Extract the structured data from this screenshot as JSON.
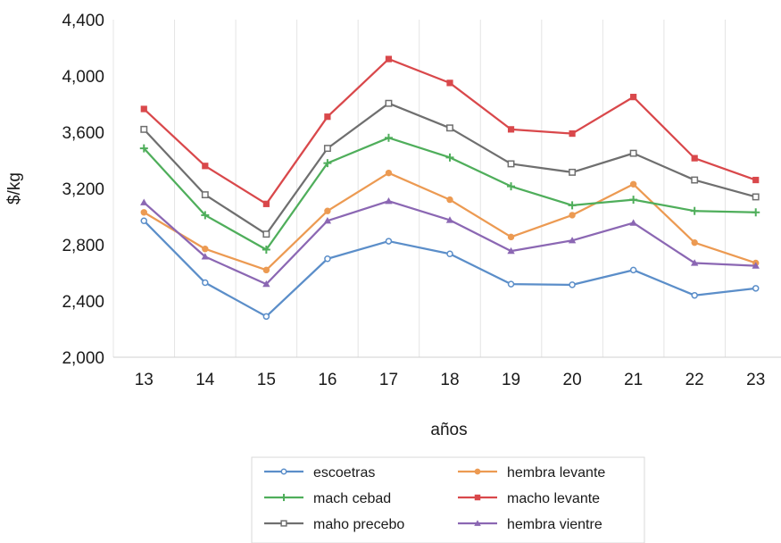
{
  "chart_data": {
    "type": "line",
    "title": "",
    "xlabel": "años",
    "ylabel": "$/kg",
    "categories": [
      "13",
      "14",
      "15",
      "16",
      "17",
      "18",
      "19",
      "20",
      "21",
      "22",
      "23"
    ],
    "ylim": [
      2000,
      4400
    ],
    "yticks": [
      2000,
      2400,
      2800,
      3200,
      3600,
      4000,
      4400
    ],
    "ytick_labels": [
      "2,000",
      "2,400",
      "2,800",
      "3,200",
      "3,600",
      "4,000",
      "4,400"
    ],
    "grid": "vertical",
    "legend_position": "bottom",
    "series": [
      {
        "name": "escoetras",
        "color": "#5b8ec9",
        "marker": "circle-open",
        "values": [
          2970,
          2530,
          2290,
          2700,
          2825,
          2735,
          2520,
          2515,
          2620,
          2440,
          2490
        ]
      },
      {
        "name": "hembra levante",
        "color": "#ec9a52",
        "marker": "circle",
        "values": [
          3030,
          2770,
          2620,
          3040,
          3310,
          3120,
          2855,
          3010,
          3230,
          2815,
          2670
        ]
      },
      {
        "name": "mach cebad",
        "color": "#4fae5b",
        "marker": "plus",
        "values": [
          3485,
          3010,
          2765,
          3380,
          3560,
          3420,
          3215,
          3080,
          3120,
          3040,
          3030
        ]
      },
      {
        "name": "macho levante",
        "color": "#d9484b",
        "marker": "square",
        "values": [
          3765,
          3360,
          3090,
          3710,
          4120,
          3950,
          3620,
          3590,
          3850,
          3415,
          3260
        ]
      },
      {
        "name": "maho precebo",
        "color": "#6f6f6f",
        "marker": "square-open",
        "values": [
          3620,
          3155,
          2875,
          3485,
          3805,
          3630,
          3375,
          3315,
          3450,
          3260,
          3140
        ]
      },
      {
        "name": "hembra vientre",
        "color": "#8b67b3",
        "marker": "triangle",
        "values": [
          3100,
          2715,
          2520,
          2970,
          3110,
          2975,
          2755,
          2830,
          2955,
          2670,
          2650
        ]
      }
    ]
  }
}
